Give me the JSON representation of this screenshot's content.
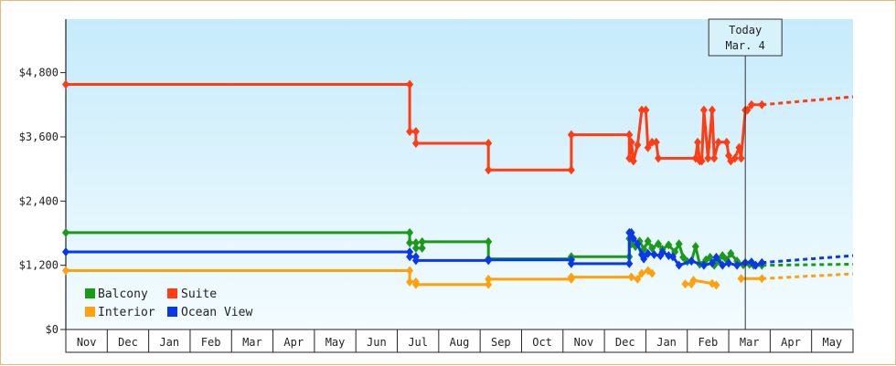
{
  "chart_data": {
    "type": "line",
    "title": "",
    "xlabel": "",
    "ylabel": "",
    "ylim": [
      0,
      5800
    ],
    "y_ticks": [
      0,
      1200,
      2400,
      3600,
      4800
    ],
    "y_tick_labels": [
      "$0",
      "$1,200",
      "$2,400",
      "$3,600",
      "$4,800"
    ],
    "x_range": [
      0,
      19
    ],
    "x_tick_labels": [
      "Nov",
      "Dec",
      "Jan",
      "Feb",
      "Mar",
      "Apr",
      "May",
      "Jun",
      "Jul",
      "Aug",
      "Sep",
      "Oct",
      "Nov",
      "Dec",
      "Jan",
      "Feb",
      "Mar",
      "Apr",
      "May"
    ],
    "today": {
      "line1": "Today",
      "line2": "Mar. 4",
      "x": 16.4
    },
    "grid": false,
    "legend_placement": "bottom-left",
    "series": [
      {
        "name": "Balcony",
        "color": "#1a9a17",
        "points": [
          [
            0,
            1810
          ],
          [
            8.3,
            1810
          ],
          [
            8.3,
            1620
          ],
          [
            8.45,
            1620
          ],
          [
            8.45,
            1520
          ],
          [
            8.6,
            1520
          ],
          [
            8.6,
            1640
          ],
          [
            10.2,
            1640
          ],
          [
            10.2,
            1320
          ],
          [
            12.2,
            1320
          ],
          [
            12.2,
            1360
          ],
          [
            13.6,
            1360
          ],
          [
            13.6,
            1700
          ],
          [
            13.65,
            1600
          ],
          [
            13.75,
            1550
          ],
          [
            13.85,
            1650
          ],
          [
            13.95,
            1500
          ],
          [
            14.05,
            1650
          ],
          [
            14.15,
            1520
          ],
          [
            14.3,
            1600
          ],
          [
            14.4,
            1500
          ],
          [
            14.55,
            1580
          ],
          [
            14.7,
            1450
          ],
          [
            14.8,
            1600
          ],
          [
            14.9,
            1350
          ],
          [
            15.0,
            1270
          ],
          [
            15.1,
            1280
          ],
          [
            15.2,
            1550
          ],
          [
            15.3,
            1220
          ],
          [
            15.45,
            1300
          ],
          [
            15.55,
            1350
          ],
          [
            15.65,
            1200
          ],
          [
            15.75,
            1280
          ],
          [
            15.85,
            1380
          ],
          [
            15.95,
            1300
          ],
          [
            16.05,
            1420
          ],
          [
            16.2,
            1280
          ],
          [
            16.35,
            1210
          ],
          [
            16.5,
            1220
          ],
          [
            16.6,
            1200
          ],
          [
            16.8,
            1200
          ]
        ],
        "forecast_end": 1220
      },
      {
        "name": "Suite",
        "color": "#ff3c12",
        "points": [
          [
            0,
            4580
          ],
          [
            8.3,
            4580
          ],
          [
            8.3,
            3700
          ],
          [
            8.45,
            3700
          ],
          [
            8.45,
            3480
          ],
          [
            10.2,
            3480
          ],
          [
            10.2,
            2980
          ],
          [
            12.2,
            2980
          ],
          [
            12.2,
            3640
          ],
          [
            13.6,
            3640
          ],
          [
            13.6,
            3200
          ],
          [
            13.65,
            3500
          ],
          [
            13.7,
            3150
          ],
          [
            13.8,
            3450
          ],
          [
            13.9,
            4100
          ],
          [
            14.0,
            4100
          ],
          [
            14.05,
            3400
          ],
          [
            14.15,
            3500
          ],
          [
            14.25,
            3500
          ],
          [
            14.3,
            3200
          ],
          [
            15.2,
            3200
          ],
          [
            15.25,
            3500
          ],
          [
            15.3,
            3150
          ],
          [
            15.35,
            3150
          ],
          [
            15.4,
            4100
          ],
          [
            15.5,
            3200
          ],
          [
            15.6,
            4100
          ],
          [
            15.65,
            3200
          ],
          [
            15.75,
            3500
          ],
          [
            15.95,
            3500
          ],
          [
            16.0,
            3250
          ],
          [
            16.05,
            3150
          ],
          [
            16.15,
            3200
          ],
          [
            16.25,
            3400
          ],
          [
            16.3,
            3200
          ],
          [
            16.4,
            4100
          ],
          [
            16.45,
            4100
          ],
          [
            16.55,
            4200
          ],
          [
            16.6,
            4200
          ],
          [
            16.8,
            4200
          ]
        ],
        "forecast_end": 4350
      },
      {
        "name": "Interior",
        "color": "#ffa10a",
        "points": [
          [
            0,
            1100
          ],
          [
            8.3,
            1100
          ],
          [
            8.3,
            890
          ],
          [
            8.45,
            890
          ],
          [
            8.45,
            840
          ],
          [
            10.2,
            840
          ],
          [
            10.2,
            940
          ],
          [
            12.2,
            940
          ],
          [
            12.2,
            980
          ],
          [
            13.6,
            980
          ],
          [
            13.65,
            980
          ],
          [
            13.8,
            940
          ],
          [
            13.9,
            1050
          ],
          [
            14.05,
            1100
          ],
          [
            14.15,
            1050
          ]
        ],
        "points_b": [
          [
            14.95,
            850
          ],
          [
            15.1,
            850
          ],
          [
            15.15,
            920
          ],
          [
            15.6,
            860
          ],
          [
            15.7,
            830
          ]
        ],
        "points_c": [
          [
            16.3,
            950
          ],
          [
            16.55,
            950
          ],
          [
            16.8,
            950
          ]
        ],
        "forecast_end": 1040
      },
      {
        "name": "Ocean View",
        "color": "#0838ea",
        "points": [
          [
            0,
            1450
          ],
          [
            8.3,
            1450
          ],
          [
            8.3,
            1360
          ],
          [
            8.45,
            1360
          ],
          [
            8.45,
            1290
          ],
          [
            10.2,
            1290
          ],
          [
            10.2,
            1300
          ],
          [
            12.2,
            1300
          ],
          [
            12.2,
            1230
          ],
          [
            13.6,
            1230
          ],
          [
            13.6,
            1810
          ],
          [
            13.65,
            1810
          ],
          [
            13.7,
            1700
          ],
          [
            13.8,
            1600
          ],
          [
            13.9,
            1400
          ],
          [
            13.95,
            1320
          ],
          [
            14.05,
            1420
          ],
          [
            14.2,
            1400
          ],
          [
            14.35,
            1380
          ],
          [
            14.4,
            1450
          ],
          [
            14.55,
            1380
          ],
          [
            14.65,
            1360
          ],
          [
            14.8,
            1200
          ],
          [
            15.1,
            1280
          ],
          [
            15.4,
            1200
          ],
          [
            15.6,
            1240
          ],
          [
            15.7,
            1350
          ],
          [
            15.85,
            1200
          ],
          [
            16.0,
            1240
          ],
          [
            16.2,
            1200
          ],
          [
            16.4,
            1250
          ],
          [
            16.55,
            1260
          ],
          [
            16.65,
            1200
          ],
          [
            16.8,
            1250
          ]
        ],
        "forecast_end": 1380
      }
    ]
  },
  "legend": {
    "balcony": "Balcony",
    "suite": "Suite",
    "interior": "Interior",
    "ocean_view": "Ocean View"
  }
}
